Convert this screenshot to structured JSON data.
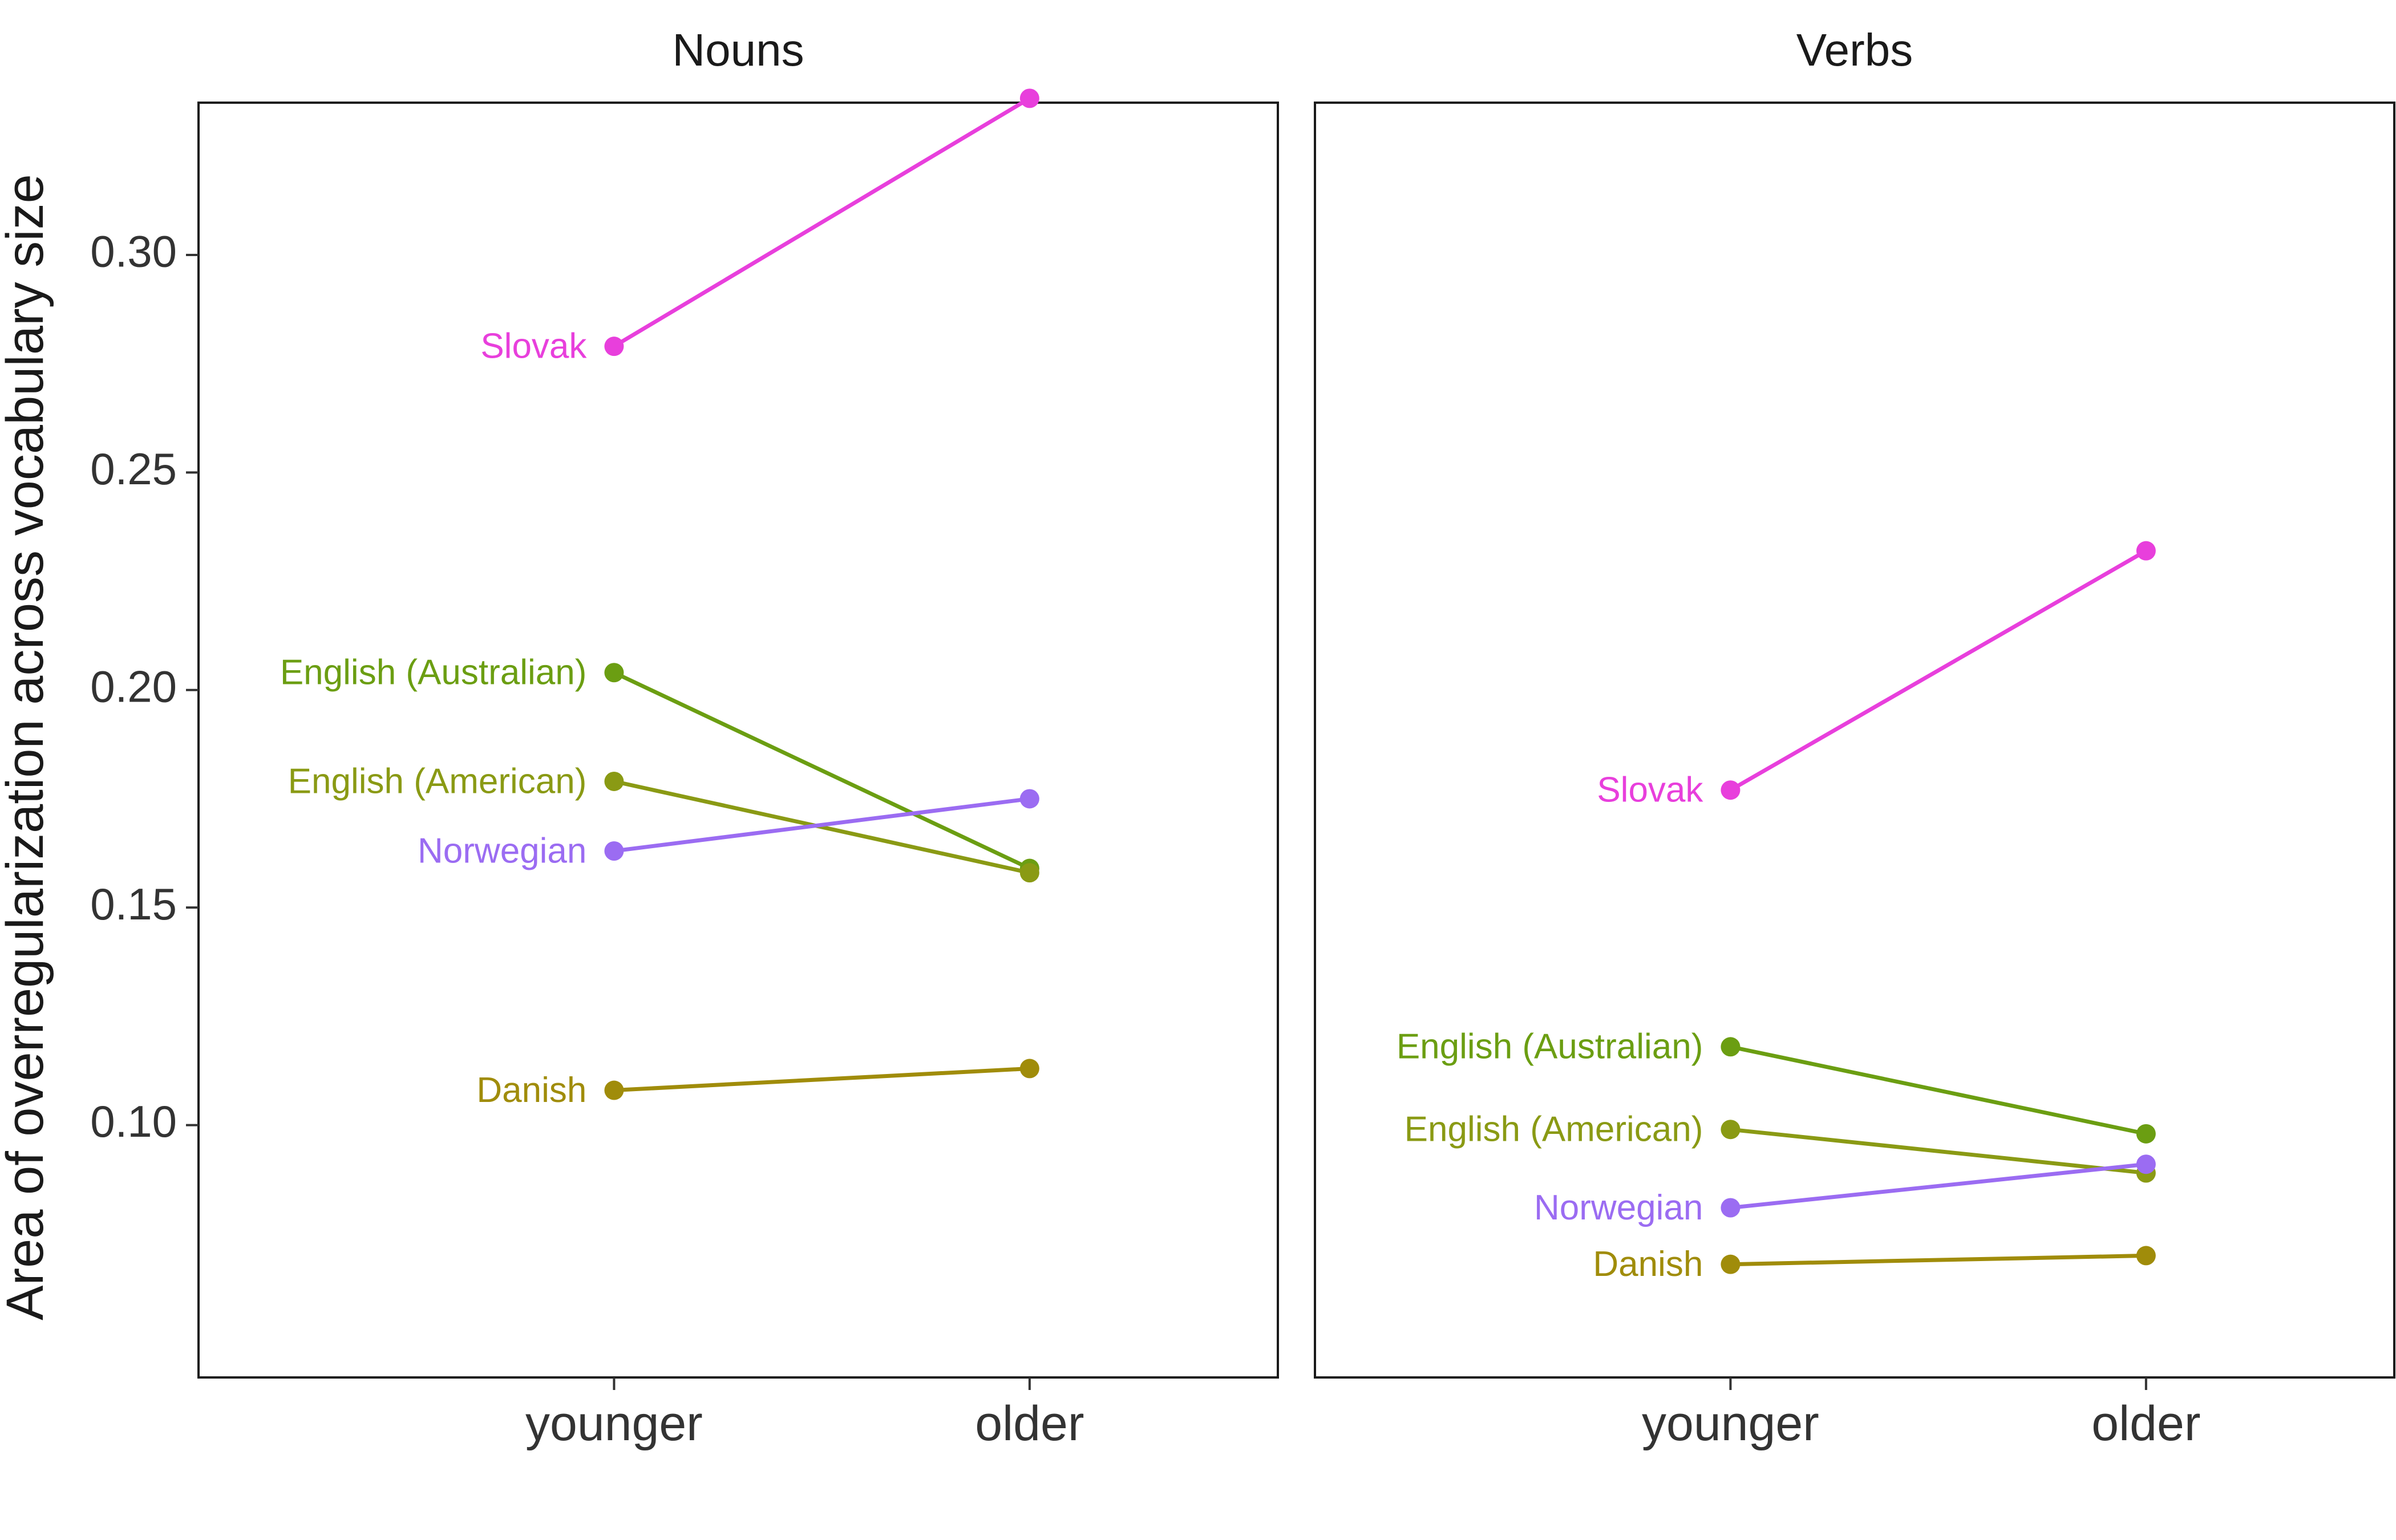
{
  "chart_data": {
    "type": "line",
    "ylabel": "Area of overregularization across vocabulary size",
    "xlabel": "",
    "categories": [
      "younger",
      "older"
    ],
    "ylim": [
      0.042,
      0.335
    ],
    "yticks": [
      0.1,
      0.15,
      0.2,
      0.25,
      0.3
    ],
    "ytick_labels": [
      "0.10",
      "0.15",
      "0.20",
      "0.25",
      "0.30"
    ],
    "grid": false,
    "legend": "none (direct labels at left end of lines)",
    "panels": [
      {
        "title": "Nouns",
        "series": [
          {
            "name": "Slovak",
            "color": "#e83fdc",
            "values": [
              0.279,
              0.336
            ]
          },
          {
            "name": "English (Australian)",
            "color": "#6b9e12",
            "values": [
              0.204,
              0.159
            ]
          },
          {
            "name": "English (American)",
            "color": "#8a9a14",
            "values": [
              0.179,
              0.158
            ]
          },
          {
            "name": "Norwegian",
            "color": "#9b6cf2",
            "values": [
              0.163,
              0.175
            ]
          },
          {
            "name": "Danish",
            "color": "#a08c0a",
            "values": [
              0.108,
              0.113
            ]
          }
        ]
      },
      {
        "title": "Verbs",
        "series": [
          {
            "name": "Slovak",
            "color": "#e83fdc",
            "values": [
              0.177,
              0.232
            ]
          },
          {
            "name": "English (Australian)",
            "color": "#6b9e12",
            "values": [
              0.118,
              0.098
            ]
          },
          {
            "name": "English (American)",
            "color": "#8a9a14",
            "values": [
              0.099,
              0.089
            ]
          },
          {
            "name": "Norwegian",
            "color": "#9b6cf2",
            "values": [
              0.081,
              0.091
            ]
          },
          {
            "name": "Danish",
            "color": "#a08c0a",
            "values": [
              0.068,
              0.07
            ]
          }
        ]
      }
    ]
  }
}
